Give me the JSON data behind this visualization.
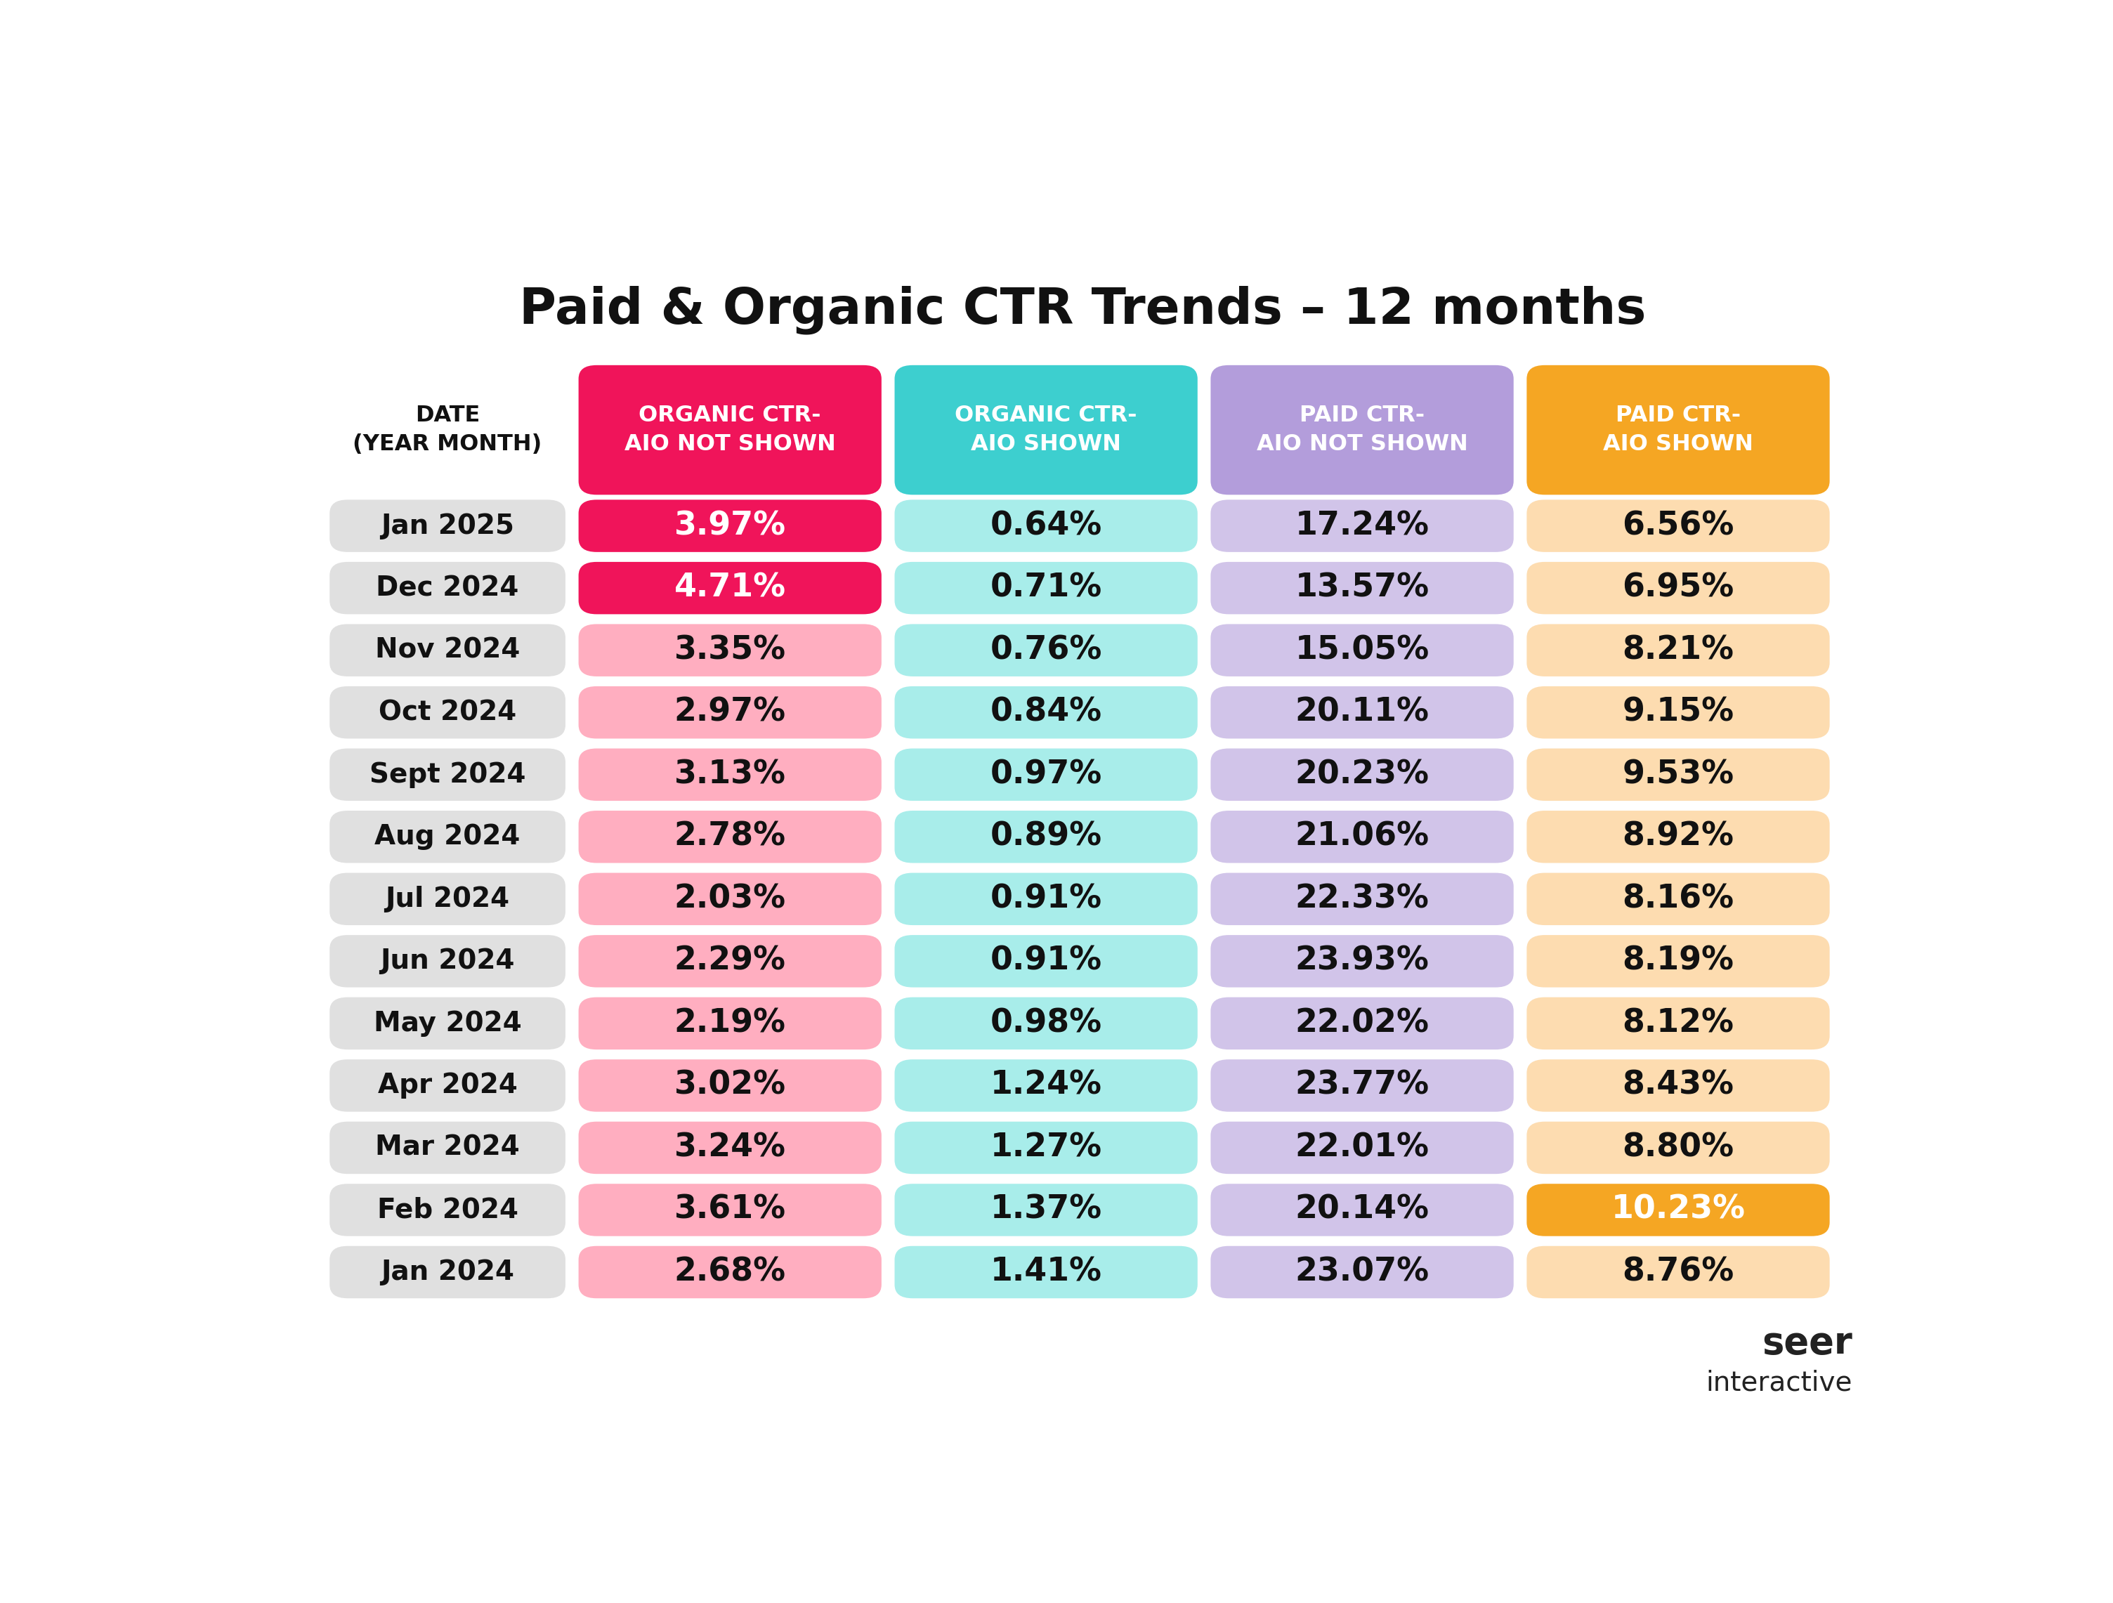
{
  "title": "Paid & Organic CTR Trends – 12 months",
  "col_header_label": "DATE\n(YEAR MONTH)",
  "columns": [
    "ORGANIC CTR-\nAIO NOT SHOWN",
    "ORGANIC CTR-\nAIO SHOWN",
    "PAID CTR-\nAIO NOT SHOWN",
    "PAID CTR-\nAIO SHOWN"
  ],
  "col_header_colors": [
    "#F0145A",
    "#3DCFCF",
    "#B39DDB",
    "#F5A623"
  ],
  "col_header_text_color": "#FFFFFF",
  "rows": [
    {
      "date": "Jan 2025",
      "values": [
        "3.97%",
        "0.64%",
        "17.24%",
        "6.56%"
      ],
      "highlight": [
        true,
        false,
        false,
        false
      ]
    },
    {
      "date": "Dec 2024",
      "values": [
        "4.71%",
        "0.71%",
        "13.57%",
        "6.95%"
      ],
      "highlight": [
        true,
        false,
        false,
        false
      ]
    },
    {
      "date": "Nov 2024",
      "values": [
        "3.35%",
        "0.76%",
        "15.05%",
        "8.21%"
      ],
      "highlight": [
        false,
        false,
        false,
        false
      ]
    },
    {
      "date": "Oct 2024",
      "values": [
        "2.97%",
        "0.84%",
        "20.11%",
        "9.15%"
      ],
      "highlight": [
        false,
        false,
        false,
        false
      ]
    },
    {
      "date": "Sept 2024",
      "values": [
        "3.13%",
        "0.97%",
        "20.23%",
        "9.53%"
      ],
      "highlight": [
        false,
        false,
        false,
        false
      ]
    },
    {
      "date": "Aug 2024",
      "values": [
        "2.78%",
        "0.89%",
        "21.06%",
        "8.92%"
      ],
      "highlight": [
        false,
        false,
        false,
        false
      ]
    },
    {
      "date": "Jul 2024",
      "values": [
        "2.03%",
        "0.91%",
        "22.33%",
        "8.16%"
      ],
      "highlight": [
        false,
        false,
        false,
        false
      ]
    },
    {
      "date": "Jun 2024",
      "values": [
        "2.29%",
        "0.91%",
        "23.93%",
        "8.19%"
      ],
      "highlight": [
        false,
        false,
        false,
        false
      ]
    },
    {
      "date": "May 2024",
      "values": [
        "2.19%",
        "0.98%",
        "22.02%",
        "8.12%"
      ],
      "highlight": [
        false,
        false,
        false,
        false
      ]
    },
    {
      "date": "Apr 2024",
      "values": [
        "3.02%",
        "1.24%",
        "23.77%",
        "8.43%"
      ],
      "highlight": [
        false,
        false,
        false,
        false
      ]
    },
    {
      "date": "Mar 2024",
      "values": [
        "3.24%",
        "1.27%",
        "22.01%",
        "8.80%"
      ],
      "highlight": [
        false,
        false,
        false,
        false
      ]
    },
    {
      "date": "Feb 2024",
      "values": [
        "3.61%",
        "1.37%",
        "20.14%",
        "10.23%"
      ],
      "highlight": [
        false,
        false,
        false,
        true
      ]
    },
    {
      "date": "Jan 2024",
      "values": [
        "2.68%",
        "1.41%",
        "23.07%",
        "8.76%"
      ],
      "highlight": [
        false,
        false,
        false,
        false
      ]
    }
  ],
  "cell_colors_normal": [
    "#FFAEC0",
    "#A8EDEA",
    "#D1C4E9",
    "#FDDCB0"
  ],
  "cell_text_color_normal": "#111111",
  "cell_text_color_highlight": "#FFFFFF",
  "date_col_bg": "#E0E0E0",
  "date_text_color": "#111111",
  "background_color": "#FFFFFF",
  "watermark_line1": "seer",
  "watermark_line2": "interactive",
  "watermark_color": "#222222"
}
